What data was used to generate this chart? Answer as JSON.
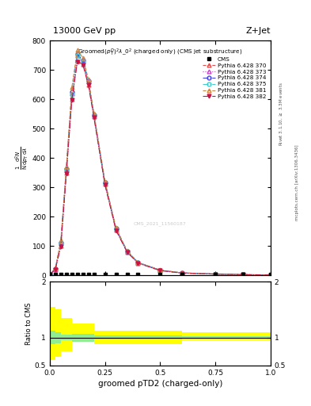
{
  "title_top_left": "13000 GeV pp",
  "title_top_right": "Z+Jet",
  "plot_title_line1": "Groomed$(p_T^D)^2\\lambda\\_0^2$ (charged only) (CMS jet substructure)",
  "xlabel": "groomed pTD2 (charged-only)",
  "ylabel_main": "$\\frac{1}{\\mathrm{N}}\\,\\frac{\\mathrm{d}^2N}{\\mathrm{d}p_T\\,\\mathrm{d}\\lambda}$",
  "ylabel_ratio": "Ratio to CMS",
  "right_label_top": "Rivet 3.1.10, $\\geq$ 3.3M events",
  "right_label_bottom": "mcplots.cern.ch [arXiv:1306.3436]",
  "watermark": "CMS_2021_11560187",
  "x_data": [
    0.0,
    0.025,
    0.05,
    0.075,
    0.1,
    0.125,
    0.15,
    0.175,
    0.2,
    0.25,
    0.3,
    0.35,
    0.4,
    0.5,
    0.6,
    0.75,
    0.875,
    1.0
  ],
  "cms_y": [
    2,
    2,
    2,
    2,
    2,
    2,
    2,
    2,
    2,
    2,
    2,
    2,
    2,
    2,
    2,
    2,
    2,
    2
  ],
  "ylim_main": [
    0,
    800
  ],
  "yticks_main": [
    0,
    100,
    200,
    300,
    400,
    500,
    600,
    700,
    800
  ],
  "xlim": [
    0.0,
    1.0
  ],
  "xticks": [
    0.0,
    0.25,
    0.5,
    0.75,
    1.0
  ],
  "series": [
    {
      "label": "Pythia 6.428 370",
      "color": "#e05050",
      "linestyle": "--",
      "marker": "^",
      "markerfacecolor": "none",
      "y": [
        2,
        20,
        100,
        350,
        600,
        730,
        720,
        650,
        540,
        310,
        155,
        80,
        42,
        16,
        8,
        4,
        2,
        1
      ]
    },
    {
      "label": "Pythia 6.428 373",
      "color": "#cc44cc",
      "linestyle": ":",
      "marker": "^",
      "markerfacecolor": "none",
      "y": [
        2,
        22,
        110,
        360,
        620,
        750,
        730,
        660,
        545,
        315,
        158,
        81,
        43,
        17,
        8,
        4,
        2,
        1
      ]
    },
    {
      "label": "Pythia 6.428 374",
      "color": "#4444dd",
      "linestyle": "-.",
      "marker": "o",
      "markerfacecolor": "none",
      "y": [
        2,
        22,
        112,
        362,
        625,
        755,
        732,
        662,
        547,
        317,
        159,
        82,
        43,
        17,
        8,
        4,
        2,
        1
      ]
    },
    {
      "label": "Pythia 6.428 375",
      "color": "#44cccc",
      "linestyle": "-.",
      "marker": "o",
      "markerfacecolor": "none",
      "y": [
        2,
        21,
        108,
        358,
        618,
        748,
        728,
        658,
        543,
        313,
        157,
        81,
        43,
        17,
        8,
        4,
        2,
        1
      ]
    },
    {
      "label": "Pythia 6.428 381",
      "color": "#cc8844",
      "linestyle": "--",
      "marker": "^",
      "markerfacecolor": "none",
      "y": [
        2,
        24,
        118,
        370,
        640,
        768,
        742,
        668,
        552,
        320,
        162,
        84,
        44,
        18,
        8,
        4,
        2,
        1
      ]
    },
    {
      "label": "Pythia 6.428 382",
      "color": "#cc1144",
      "linestyle": "-.",
      "marker": "v",
      "markerfacecolor": "#cc1144",
      "y": [
        2,
        20,
        98,
        345,
        598,
        728,
        718,
        648,
        538,
        308,
        153,
        79,
        41,
        16,
        7,
        4,
        2,
        1
      ]
    }
  ],
  "ratio_x_edges": [
    0.0,
    0.025,
    0.05,
    0.1,
    0.15,
    0.2,
    0.3,
    0.4,
    0.5,
    0.6,
    0.75,
    1.0
  ],
  "ratio_yellow_low": [
    0.6,
    0.65,
    0.75,
    1.05,
    1.05,
    0.88,
    0.88,
    0.88,
    0.88,
    0.95,
    0.95
  ],
  "ratio_yellow_high": [
    1.55,
    1.5,
    1.35,
    1.25,
    1.25,
    1.12,
    1.12,
    1.12,
    1.12,
    1.1,
    1.1
  ],
  "ratio_green_low": [
    0.88,
    0.9,
    0.95,
    1.07,
    1.07,
    0.96,
    0.96,
    0.96,
    0.96,
    0.98,
    0.98
  ],
  "ratio_green_high": [
    1.12,
    1.1,
    1.05,
    0.93,
    0.93,
    1.04,
    1.04,
    1.04,
    1.04,
    1.02,
    1.02
  ],
  "ylim_ratio": [
    0.5,
    2.0
  ],
  "yticks_ratio": [
    0.5,
    1.0,
    2.0
  ],
  "yticklabels_ratio": [
    "0.5",
    "1",
    "2"
  ]
}
